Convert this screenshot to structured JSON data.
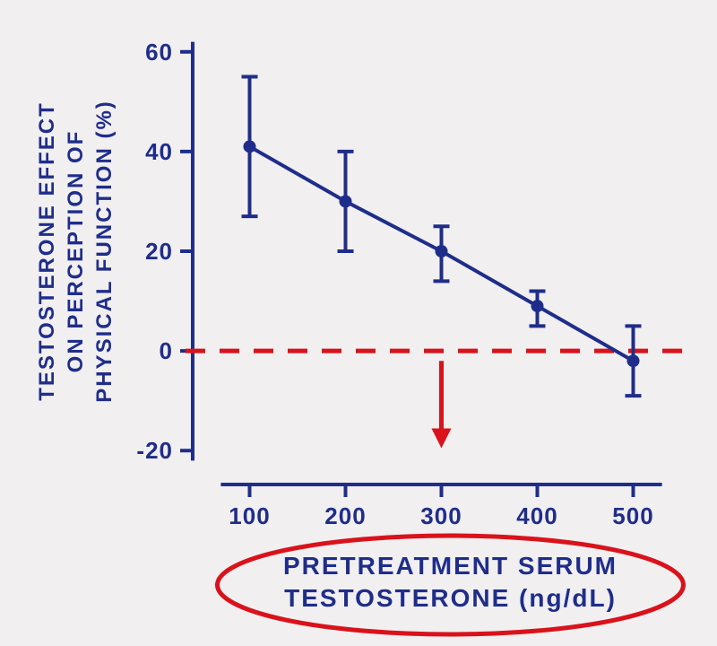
{
  "chart": {
    "type": "line-errorbar",
    "background_color": "#f1efef",
    "plot_background": "#ffffff",
    "axis_color": "#1f2d8a",
    "axis_line_width": 4,
    "tick_len": 14,
    "line_color": "#1f2d8a",
    "line_width": 4,
    "marker_radius": 7,
    "marker_fill": "#1f2d8a",
    "errorbar_cap_width": 18,
    "errorbar_line_width": 4,
    "zero_line_color": "#d9121b",
    "zero_line_width": 5,
    "zero_line_dash": "22,16",
    "circle_annot_color": "#d9121b",
    "circle_annot_width": 5,
    "arrow_color": "#d9121b",
    "arrow_width": 5,
    "xlim": [
      50,
      550
    ],
    "ylim": [
      -25,
      65
    ],
    "xticks": [
      100,
      200,
      300,
      400,
      500
    ],
    "yticks": [
      -20,
      0,
      20,
      40,
      60
    ],
    "xtick_labels": [
      "100",
      "200",
      "300",
      "400",
      "500"
    ],
    "ytick_labels": [
      "-20",
      "0",
      "20",
      "40",
      "60"
    ],
    "tick_fontsize": 26,
    "label_fontsize": 24,
    "ylabel_line1": "TESTOSTERONE EFFECT",
    "ylabel_line2": "ON PERCEPTION OF",
    "ylabel_line3": "PHYSICAL FUNCTION (%)",
    "xlabel_line1": "PRETREATMENT SERUM",
    "xlabel_line2": "TESTOSTERONE (ng/dL)",
    "data": {
      "x": [
        100,
        200,
        300,
        400,
        500
      ],
      "y": [
        41,
        30,
        20,
        9,
        -2
      ],
      "lo": [
        27,
        20,
        14,
        5,
        -9
      ],
      "hi": [
        55,
        40,
        25,
        12,
        5
      ]
    },
    "arrow_at_x": 300,
    "arrow_y_from": -2,
    "arrow_y_to": -17
  }
}
